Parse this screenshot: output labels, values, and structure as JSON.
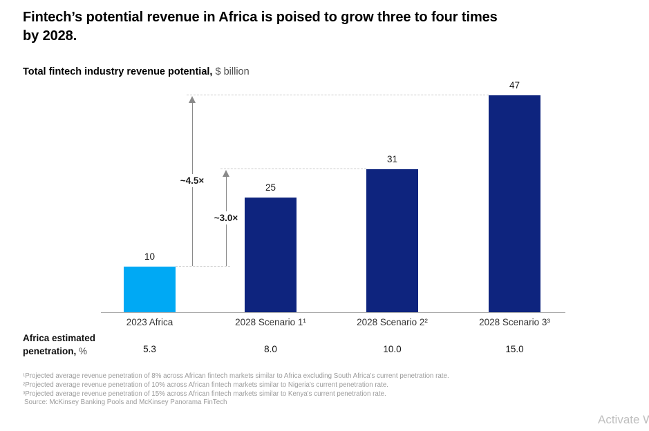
{
  "title": {
    "line1": "Fintech’s potential revenue in Africa is poised to grow three to four times",
    "line2": "by 2028."
  },
  "subtitle": {
    "label": "Total fintech industry revenue potential,",
    "unit": " $ billion"
  },
  "chart_data": {
    "type": "bar",
    "title": "Total fintech industry revenue potential, $ billion",
    "xlabel": "",
    "ylabel": "$ billion",
    "categories": [
      "2023 Africa",
      "2028 Scenario 1¹",
      "2028 Scenario 2²",
      "2028 Scenario 3³"
    ],
    "values": [
      10,
      25,
      31,
      47
    ],
    "bar_value_labels": [
      "10",
      "25",
      "31",
      "47"
    ],
    "bar_colors": [
      "#00A9F4",
      "#0E247E",
      "#0E247E",
      "#0E247E"
    ],
    "ylim": [
      0,
      50
    ],
    "grid": false,
    "legend": false,
    "annotations": [
      {
        "label": "~4.5×",
        "from_value": 10,
        "to_value": 47
      },
      {
        "label": "~3.0×",
        "from_value": 10,
        "to_value": 31
      }
    ],
    "penetration_row": {
      "label_line1": "Africa estimated",
      "label_line2": "penetration,",
      "label_unit": " %",
      "values": [
        "5.3",
        "8.0",
        "10.0",
        "15.0"
      ]
    }
  },
  "footnotes": [
    "¹Projected average revenue penetration of 8% across African fintech markets similar to Africa excluding South Africa's current penetration rate.",
    "²Projected average revenue penetration of 10% across African fintech markets similar to Nigeria's current penetration rate.",
    "³Projected average revenue penetration of 15% across African fintech markets similar to Kenya's current penetration rate."
  ],
  "source": "Source: McKinsey Banking Pools and McKinsey Panorama FinTech",
  "watermark": "Activate W",
  "colors": {
    "bar_highlight": "#00A9F4",
    "bar_dark": "#0E247E",
    "dashed_line": "#C8C8C8",
    "arrow": "#8A8A8A",
    "axis": "#ABABAB",
    "footnote": "#9B9B9B",
    "watermark": "#BFBFBF"
  }
}
